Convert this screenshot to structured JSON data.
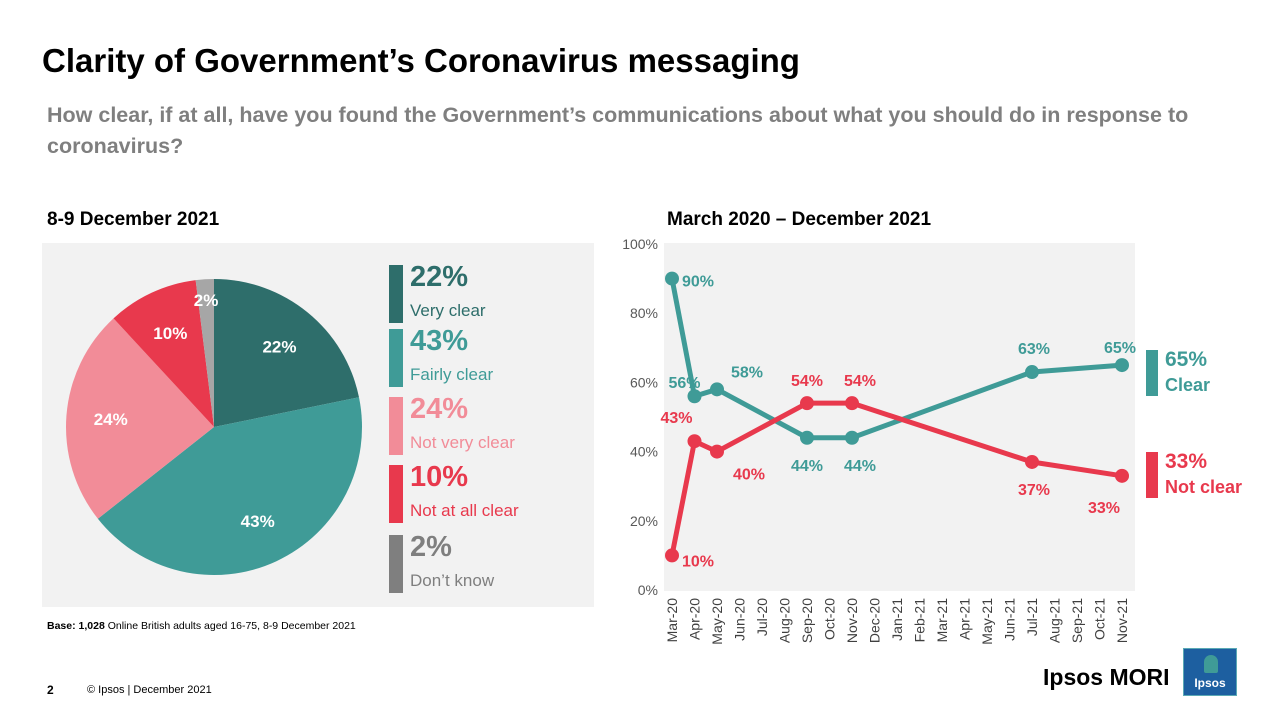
{
  "page": {
    "title": "Clarity of Government’s Coronavirus messaging",
    "question": "How clear, if at all, have you found the Government’s communications about what you should do in response to coronavirus?",
    "base_bold": "Base: 1,028",
    "base_rest": " Online British adults aged 16-75, 8-9 December 2021",
    "page_number": "2",
    "copyright": "© Ipsos | December 2021",
    "brand": "Ipsos MORI",
    "logo_text": "Ipsos"
  },
  "colors": {
    "very_clear": "#2e6e6b",
    "fairly_clear": "#3f9b97",
    "not_very_clear": "#f28c98",
    "not_at_all_clear": "#e8394d",
    "dont_know": "#8c8c8c",
    "clear_line": "#3f9b97",
    "not_clear_line": "#e8394d"
  },
  "chart_data": [
    {
      "type": "pie",
      "title": "8-9 December 2021",
      "slices": [
        {
          "label": "Very clear",
          "value": 22,
          "display": "22%",
          "color": "#2e6e6b"
        },
        {
          "label": "Fairly clear",
          "value": 43,
          "display": "43%",
          "color": "#3f9b97"
        },
        {
          "label": "Not very clear",
          "value": 24,
          "display": "24%",
          "color": "#f28c98"
        },
        {
          "label": "Not at all clear",
          "value": 10,
          "display": "10%",
          "color": "#e8394d"
        },
        {
          "label": "Don’t know",
          "value": 2,
          "display": "2%",
          "color": "#a6a6a6"
        }
      ],
      "legend": [
        {
          "pct": "22%",
          "label": "Very clear",
          "color": "#2e6e6b"
        },
        {
          "pct": "43%",
          "label": "Fairly clear",
          "color": "#3f9b97"
        },
        {
          "pct": "24%",
          "label": "Not very clear",
          "color": "#f28c98"
        },
        {
          "pct": "10%",
          "label": "Not at all clear",
          "color": "#e8394d"
        },
        {
          "pct": "2%",
          "label": "Don’t know",
          "color": "#7f7f7f"
        }
      ],
      "legend_placement": "right"
    },
    {
      "type": "line",
      "title": "March 2020 – December 2021",
      "categories": [
        "Mar-20",
        "Apr-20",
        "May-20",
        "Jun-20",
        "Jul-20",
        "Aug-20",
        "Sep-20",
        "Oct-20",
        "Nov-20",
        "Dec-20",
        "Jan-21",
        "Feb-21",
        "Mar-21",
        "Apr-21",
        "May-21",
        "Jun-21",
        "Jul-21",
        "Aug-21",
        "Sep-21",
        "Oct-21",
        "Nov-21"
      ],
      "ylim": [
        0,
        100
      ],
      "yticks": [
        0,
        20,
        40,
        60,
        80,
        100
      ],
      "ytick_labels": [
        "0%",
        "20%",
        "40%",
        "60%",
        "80%",
        "100%"
      ],
      "grid": false,
      "series": [
        {
          "name": "Clear",
          "color": "#3f9b97",
          "points": [
            {
              "x": "Mar-20",
              "y": 90,
              "label": "90%"
            },
            {
              "x": "Apr-20",
              "y": 56,
              "label": "56%"
            },
            {
              "x": "May-20",
              "y": 58,
              "label": "58%"
            },
            {
              "x": "Sep-20",
              "y": 44,
              "label": "44%"
            },
            {
              "x": "Nov-20",
              "y": 44,
              "label": "44%"
            },
            {
              "x": "Jul-21",
              "y": 63,
              "label": "63%"
            },
            {
              "x": "Nov-21",
              "y": 65,
              "label": "65%"
            }
          ],
          "end_label": {
            "pct": "65%",
            "label": "Clear"
          }
        },
        {
          "name": "Not clear",
          "color": "#e8394d",
          "points": [
            {
              "x": "Mar-20",
              "y": 10,
              "label": "10%"
            },
            {
              "x": "Apr-20",
              "y": 43,
              "label": "43%"
            },
            {
              "x": "May-20",
              "y": 40,
              "label": "40%"
            },
            {
              "x": "Sep-20",
              "y": 54,
              "label": "54%"
            },
            {
              "x": "Nov-20",
              "y": 54,
              "label": "54%"
            },
            {
              "x": "Jul-21",
              "y": 37,
              "label": "37%"
            },
            {
              "x": "Nov-21",
              "y": 33,
              "label": "33%"
            }
          ],
          "end_label": {
            "pct": "33%",
            "label": "Not clear"
          }
        }
      ]
    }
  ]
}
